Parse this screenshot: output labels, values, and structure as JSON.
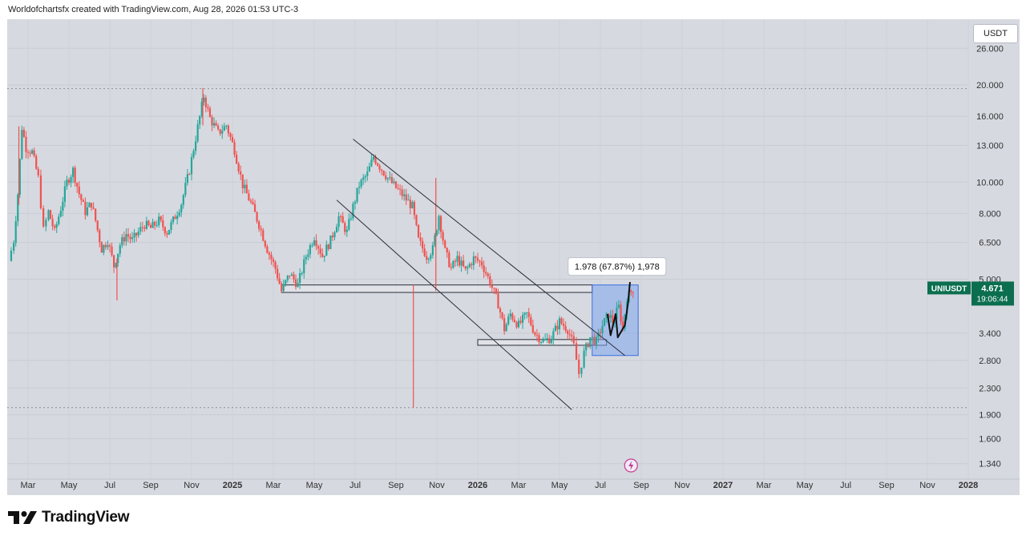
{
  "header": {
    "text": "Worldofchartsfx created with TradingView.com, Aug 28, 2026 01:53 UTC-3"
  },
  "currency_button": {
    "label": "USDT"
  },
  "brand": {
    "name": "TradingView"
  },
  "price_badge": {
    "symbol": "UNIUSDT",
    "price": "4.671",
    "countdown": "19:06:44",
    "color": "#0b6e4f"
  },
  "measure_label": {
    "text": "1.978 (67.87%) 1,978"
  },
  "colors": {
    "up": "#26a69a",
    "down": "#ef5350",
    "background": "#d6d9e0",
    "box_fill": "#7fa6ee",
    "box_stroke": "#3d6fe0",
    "line": "#2a2e39"
  },
  "chart_data": {
    "type": "candlestick",
    "scale": "log",
    "ylim": [
      1.2,
      32
    ],
    "yticks": [
      "26.000",
      "20.000",
      "16.000",
      "13.000",
      "10.000",
      "8.000",
      "6.500",
      "5.000",
      "3.400",
      "2.800",
      "2.300",
      "1.900",
      "1.600",
      "1.340"
    ],
    "ytick_values": [
      26,
      20,
      16,
      13,
      10,
      8,
      6.5,
      5,
      3.4,
      2.8,
      2.3,
      1.9,
      1.6,
      1.34
    ],
    "xlabels": [
      "Mar",
      "May",
      "Jul",
      "Sep",
      "Nov",
      "2025",
      "Mar",
      "May",
      "Jul",
      "Sep",
      "Nov",
      "2026",
      "Mar",
      "May",
      "Jul",
      "Sep",
      "Nov",
      "2027",
      "Mar",
      "May",
      "Jul",
      "Sep",
      "Nov",
      "2028"
    ],
    "xlabel_months": [
      2,
      4,
      6,
      8,
      10,
      12,
      14,
      16,
      18,
      20,
      22,
      24,
      26,
      28,
      30,
      32,
      34,
      36,
      38,
      40,
      42,
      44,
      46,
      48
    ],
    "xlabel_bold": [
      false,
      false,
      false,
      false,
      false,
      true,
      false,
      false,
      false,
      false,
      false,
      true,
      false,
      false,
      false,
      false,
      false,
      true,
      false,
      false,
      false,
      false,
      false,
      true
    ],
    "dotted_levels": [
      19.5,
      2.0
    ],
    "price_path": [
      {
        "m": 1.05,
        "p": 5.7
      },
      {
        "m": 1.3,
        "p": 6.6
      },
      {
        "m": 1.5,
        "p": 9.2
      },
      {
        "m": 1.7,
        "p": 14.8
      },
      {
        "m": 1.9,
        "p": 12.8
      },
      {
        "m": 2.2,
        "p": 12.4
      },
      {
        "m": 2.5,
        "p": 10.3
      },
      {
        "m": 2.75,
        "p": 7.1
      },
      {
        "m": 3.0,
        "p": 8.1
      },
      {
        "m": 3.3,
        "p": 7.0
      },
      {
        "m": 3.6,
        "p": 8.3
      },
      {
        "m": 3.9,
        "p": 10.0
      },
      {
        "m": 4.2,
        "p": 10.9
      },
      {
        "m": 4.5,
        "p": 9.2
      },
      {
        "m": 4.8,
        "p": 8.1
      },
      {
        "m": 5.1,
        "p": 8.6
      },
      {
        "m": 5.3,
        "p": 7.6
      },
      {
        "m": 5.6,
        "p": 6.2
      },
      {
        "m": 5.9,
        "p": 6.6
      },
      {
        "m": 6.2,
        "p": 5.5
      },
      {
        "m": 6.5,
        "p": 6.4
      },
      {
        "m": 6.8,
        "p": 6.9
      },
      {
        "m": 7.1,
        "p": 6.6
      },
      {
        "m": 7.4,
        "p": 7.0
      },
      {
        "m": 7.7,
        "p": 7.4
      },
      {
        "m": 8.0,
        "p": 7.2
      },
      {
        "m": 8.4,
        "p": 7.6
      },
      {
        "m": 8.8,
        "p": 7.0
      },
      {
        "m": 9.1,
        "p": 7.6
      },
      {
        "m": 9.5,
        "p": 8.6
      },
      {
        "m": 9.9,
        "p": 10.9
      },
      {
        "m": 10.3,
        "p": 14.8
      },
      {
        "m": 10.6,
        "p": 18.5
      },
      {
        "m": 10.9,
        "p": 15.8
      },
      {
        "m": 11.3,
        "p": 14.2
      },
      {
        "m": 11.7,
        "p": 15.0
      },
      {
        "m": 12.1,
        "p": 12.6
      },
      {
        "m": 12.5,
        "p": 9.8
      },
      {
        "m": 12.9,
        "p": 8.6
      },
      {
        "m": 13.3,
        "p": 7.4
      },
      {
        "m": 13.7,
        "p": 6.2
      },
      {
        "m": 14.1,
        "p": 5.4
      },
      {
        "m": 14.4,
        "p": 4.6
      },
      {
        "m": 14.8,
        "p": 5.2
      },
      {
        "m": 15.2,
        "p": 4.8
      },
      {
        "m": 15.6,
        "p": 5.9
      },
      {
        "m": 16.0,
        "p": 6.8
      },
      {
        "m": 16.4,
        "p": 5.9
      },
      {
        "m": 16.8,
        "p": 6.6
      },
      {
        "m": 17.2,
        "p": 7.8
      },
      {
        "m": 17.6,
        "p": 7.0
      },
      {
        "m": 17.9,
        "p": 8.4
      },
      {
        "m": 18.2,
        "p": 9.8
      },
      {
        "m": 18.6,
        "p": 10.6
      },
      {
        "m": 18.9,
        "p": 12.0
      },
      {
        "m": 19.2,
        "p": 11.2
      },
      {
        "m": 19.6,
        "p": 10.3
      },
      {
        "m": 20.0,
        "p": 9.6
      },
      {
        "m": 20.4,
        "p": 9.0
      },
      {
        "m": 20.8,
        "p": 8.4
      },
      {
        "m": 21.1,
        "p": 6.6
      },
      {
        "m": 21.5,
        "p": 5.9
      },
      {
        "m": 21.8,
        "p": 6.2
      },
      {
        "m": 22.1,
        "p": 7.9
      },
      {
        "m": 22.4,
        "p": 6.1
      },
      {
        "m": 22.7,
        "p": 5.4
      },
      {
        "m": 23.0,
        "p": 5.8
      },
      {
        "m": 23.4,
        "p": 5.3
      },
      {
        "m": 23.8,
        "p": 5.8
      },
      {
        "m": 24.2,
        "p": 5.6
      },
      {
        "m": 24.6,
        "p": 4.9
      },
      {
        "m": 25.0,
        "p": 4.2
      },
      {
        "m": 25.3,
        "p": 3.5
      },
      {
        "m": 25.6,
        "p": 3.9
      },
      {
        "m": 26.0,
        "p": 3.6
      },
      {
        "m": 26.4,
        "p": 3.9
      },
      {
        "m": 26.8,
        "p": 3.4
      },
      {
        "m": 27.2,
        "p": 3.2
      },
      {
        "m": 27.6,
        "p": 3.3
      },
      {
        "m": 28.0,
        "p": 3.7
      },
      {
        "m": 28.4,
        "p": 3.5
      },
      {
        "m": 28.7,
        "p": 3.1
      },
      {
        "m": 28.95,
        "p": 2.55
      },
      {
        "m": 29.2,
        "p": 2.95
      },
      {
        "m": 29.5,
        "p": 3.3
      },
      {
        "m": 29.8,
        "p": 3.2
      },
      {
        "m": 30.1,
        "p": 3.6
      },
      {
        "m": 30.4,
        "p": 3.9
      },
      {
        "m": 30.6,
        "p": 3.7
      },
      {
        "m": 30.9,
        "p": 4.1
      },
      {
        "m": 31.1,
        "p": 3.5
      },
      {
        "m": 31.3,
        "p": 4.4
      },
      {
        "m": 31.6,
        "p": 4.671
      }
    ],
    "spikes": [
      {
        "m": 20.85,
        "low": 2.0,
        "high": 4.8
      },
      {
        "m": 21.95,
        "low": 4.6,
        "high": 10.3
      },
      {
        "m": 10.55,
        "low": 15.0,
        "high": 19.6
      },
      {
        "m": 6.35,
        "low": 4.3,
        "high": 5.8
      },
      {
        "m": 1.55,
        "low": 8.5,
        "high": 14.9
      }
    ],
    "channel_upper": [
      {
        "m": 17.9,
        "p": 13.6
      },
      {
        "m": 31.2,
        "p": 2.9
      }
    ],
    "channel_lower": [
      {
        "m": 17.1,
        "p": 8.8
      },
      {
        "m": 28.6,
        "p": 1.97
      }
    ],
    "resistance_zone": {
      "m0": 14.4,
      "m1": 29.6,
      "p_low": 4.55,
      "p_high": 4.8
    },
    "support_zone": {
      "m0": 24.0,
      "m1": 30.3,
      "p_low": 3.12,
      "p_high": 3.25
    },
    "measure_box": {
      "m0": 29.6,
      "m1": 31.85,
      "p_low": 2.9,
      "p_high": 4.8
    },
    "cup_handle": [
      {
        "m": 30.35,
        "p": 3.9
      },
      {
        "m": 30.5,
        "p": 3.35
      },
      {
        "m": 30.75,
        "p": 3.9
      },
      {
        "m": 30.85,
        "p": 3.3
      },
      {
        "m": 31.2,
        "p": 3.6
      },
      {
        "m": 31.35,
        "p": 4.2
      },
      {
        "m": 31.45,
        "p": 4.9
      }
    ]
  }
}
